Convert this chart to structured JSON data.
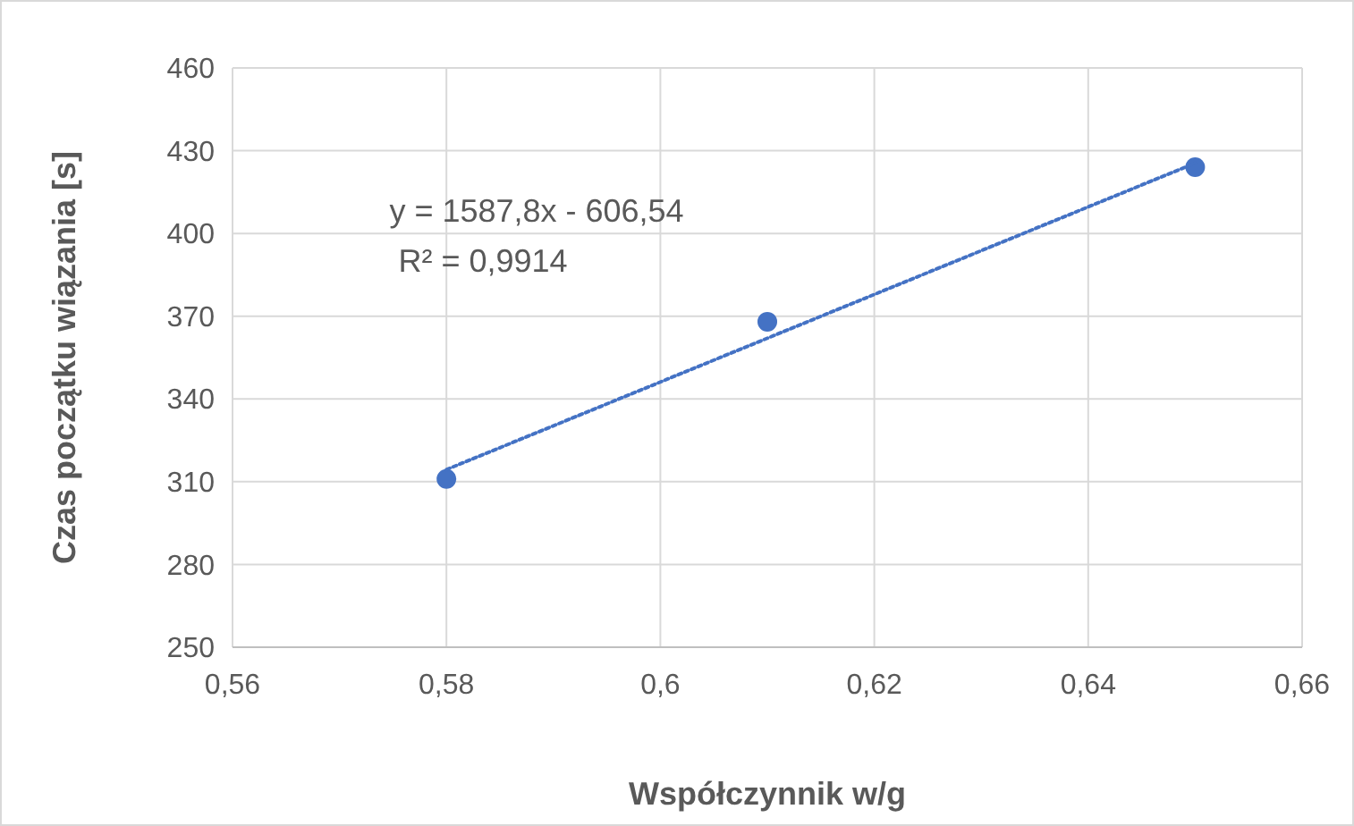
{
  "chart_data": {
    "type": "scatter",
    "xlabel": "Współczynnik w/g",
    "ylabel": "Czas początku wiązania [s]",
    "x": [
      0.58,
      0.61,
      0.65
    ],
    "series": [
      {
        "color": "#4472c4",
        "marker": "circle",
        "values": [
          311,
          368,
          424
        ]
      },
      {
        "type": "line",
        "color": "#4472c4",
        "line_style": "dotted",
        "marker": "none",
        "x": [
          0.58,
          0.65
        ],
        "values": [
          314.4,
          425.5
        ]
      }
    ],
    "xlim": [
      0.56,
      0.66
    ],
    "xticks": [
      {
        "value": 0.56,
        "label": "0,56"
      },
      {
        "value": 0.58,
        "label": "0,58"
      },
      {
        "value": 0.6,
        "label": "0,6"
      },
      {
        "value": 0.62,
        "label": "0,62"
      },
      {
        "value": 0.64,
        "label": "0,64"
      },
      {
        "value": 0.66,
        "label": "0,66"
      }
    ],
    "ylim": [
      250,
      460
    ],
    "yticks": [
      250,
      280,
      310,
      340,
      370,
      400,
      430,
      460
    ],
    "grid": true,
    "annotations": [
      "y = 1587,8x - 606,54",
      "R² = 0,9914"
    ]
  }
}
